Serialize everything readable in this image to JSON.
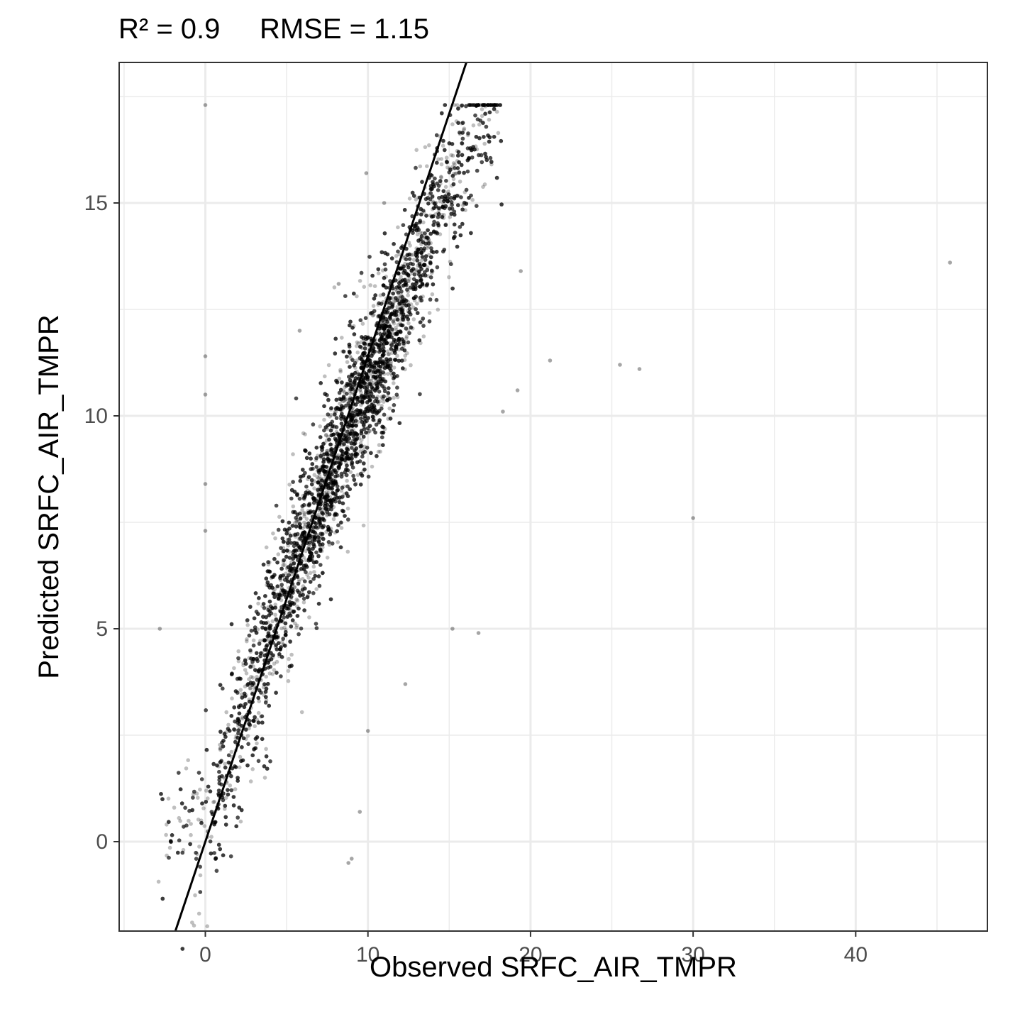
{
  "chart_data": {
    "type": "scatter",
    "title": "R² = 0.9     RMSE = 1.15",
    "xlabel": "Observed SRFC_AIR_TMPR",
    "ylabel": "Predicted SRFC_AIR_TMPR",
    "xlim": [
      -5.3,
      48.1
    ],
    "ylim": [
      -2.1,
      18.3
    ],
    "x_ticks": [
      0,
      10,
      20,
      30,
      40
    ],
    "x_tick_labels": [
      "0",
      "10",
      "20",
      "30",
      "40"
    ],
    "y_ticks": [
      0,
      5,
      10,
      15
    ],
    "y_tick_labels": [
      "0",
      "5",
      "10",
      "15"
    ],
    "grid": true,
    "legend": "none",
    "reference_line": {
      "type": "abline",
      "intercept": 0.0,
      "slope": 1.14
    },
    "point_color": "#000000",
    "point_alpha": 0.25,
    "point_cloud": {
      "description_free_summary": [
        {
          "x": -3.0,
          "y": 0.9
        },
        {
          "x": -2.0,
          "y": 0.5
        },
        {
          "x": -1.0,
          "y": 0.3
        },
        {
          "x": 0.0,
          "y": 0.5
        },
        {
          "x": 1.0,
          "y": 1.5
        },
        {
          "x": 2.0,
          "y": 2.7
        },
        {
          "x": 3.0,
          "y": 3.8
        },
        {
          "x": 4.0,
          "y": 4.9
        },
        {
          "x": 5.0,
          "y": 6.0
        },
        {
          "x": 6.0,
          "y": 7.0
        },
        {
          "x": 7.0,
          "y": 8.0
        },
        {
          "x": 8.0,
          "y": 9.0
        },
        {
          "x": 9.0,
          "y": 9.9
        },
        {
          "x": 10.0,
          "y": 10.7
        },
        {
          "x": 11.0,
          "y": 11.6
        },
        {
          "x": 12.0,
          "y": 12.5
        },
        {
          "x": 13.0,
          "y": 13.5
        },
        {
          "x": 14.0,
          "y": 14.5
        },
        {
          "x": 15.0,
          "y": 15.3
        },
        {
          "x": 16.0,
          "y": 16.2
        },
        {
          "x": 17.0,
          "y": 16.9
        },
        {
          "x": 18.0,
          "y": 17.2
        }
      ]
    },
    "outliers": [
      {
        "x": 0.0,
        "y": 17.3
      },
      {
        "x": 0.0,
        "y": 11.4
      },
      {
        "x": 0.0,
        "y": 10.5
      },
      {
        "x": 0.0,
        "y": 8.4
      },
      {
        "x": 0.0,
        "y": 7.3
      },
      {
        "x": 21.2,
        "y": 11.3
      },
      {
        "x": 25.5,
        "y": 11.2
      },
      {
        "x": 26.7,
        "y": 11.1
      },
      {
        "x": 30.0,
        "y": 7.6
      },
      {
        "x": 45.8,
        "y": 13.6
      },
      {
        "x": 19.4,
        "y": 13.4
      },
      {
        "x": 19.2,
        "y": 10.6
      },
      {
        "x": 18.3,
        "y": 10.1
      },
      {
        "x": 8.8,
        "y": -0.5
      },
      {
        "x": 9.0,
        "y": -0.4
      },
      {
        "x": 9.5,
        "y": 0.7
      },
      {
        "x": 10.0,
        "y": 2.6
      },
      {
        "x": 12.3,
        "y": 3.7
      },
      {
        "x": 16.8,
        "y": 4.9
      },
      {
        "x": 15.2,
        "y": 5.0
      },
      {
        "x": -2.8,
        "y": 5.0
      },
      {
        "x": 9.9,
        "y": 15.7
      },
      {
        "x": 11.0,
        "y": 15.0
      },
      {
        "x": 8.2,
        "y": 13.1
      },
      {
        "x": 5.8,
        "y": 12.0
      }
    ]
  }
}
